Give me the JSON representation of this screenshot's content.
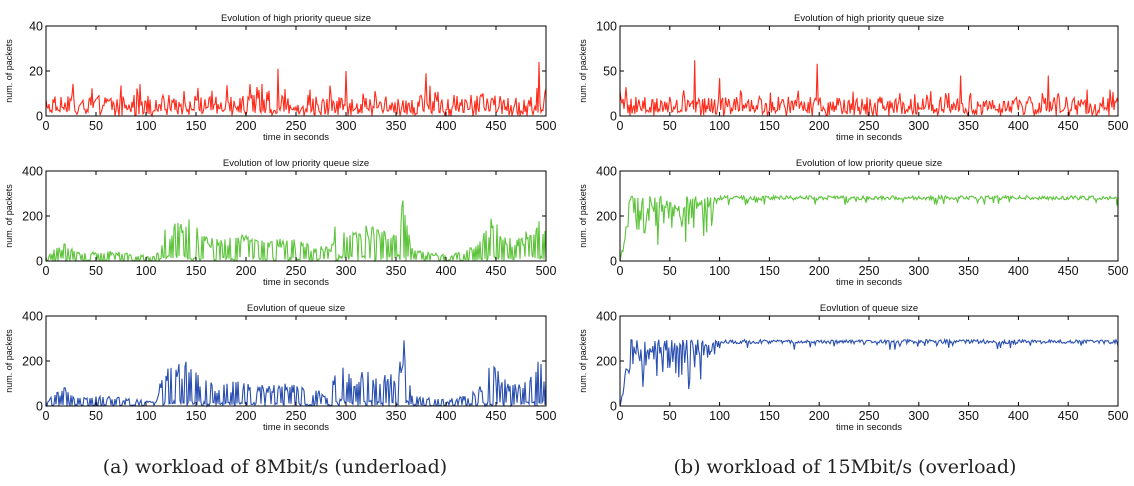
{
  "figure": {
    "caption_a": "(a) workload of 8Mbit/s (underload)",
    "caption_b": "(b) workload of 15Mbit/s (overload)"
  },
  "chart_data": [
    {
      "id": "a-high",
      "type": "line",
      "title": "Evolution of high priority queue size",
      "xlabel": "time in seconds",
      "ylabel": "num. of packets",
      "xlim": [
        0,
        500
      ],
      "ylim": [
        0,
        40
      ],
      "xticks": [
        0,
        50,
        100,
        150,
        200,
        250,
        300,
        350,
        400,
        450,
        500
      ],
      "yticks": [
        0,
        20,
        40
      ],
      "color": "#ff2a1a",
      "series": [
        {
          "mode": "spiky",
          "base": 5,
          "spread": 8,
          "peaks": [
            [
              232,
              21
            ],
            [
              300,
              20
            ],
            [
              380,
              19
            ],
            [
              493,
              24
            ]
          ],
          "x_step": 1
        }
      ]
    },
    {
      "id": "a-low",
      "type": "line",
      "title": "Evolution of low priority queue size",
      "xlabel": "time in seconds",
      "ylabel": "num. of packets",
      "xlim": [
        0,
        500
      ],
      "ylim": [
        0,
        400
      ],
      "xticks": [
        0,
        50,
        100,
        150,
        200,
        250,
        300,
        350,
        400,
        450,
        500
      ],
      "yticks": [
        0,
        200,
        400
      ],
      "color": "#5cc43a",
      "series": [
        {
          "mode": "envelope",
          "x_step": 1,
          "envelope": [
            [
              0,
              20
            ],
            [
              10,
              60
            ],
            [
              20,
              100
            ],
            [
              30,
              40
            ],
            [
              60,
              50
            ],
            [
              90,
              30
            ],
            [
              110,
              20
            ],
            [
              115,
              120
            ],
            [
              125,
              180
            ],
            [
              140,
              200
            ],
            [
              155,
              130
            ],
            [
              170,
              100
            ],
            [
              200,
              120
            ],
            [
              220,
              90
            ],
            [
              240,
              110
            ],
            [
              260,
              80
            ],
            [
              285,
              60
            ],
            [
              292,
              240
            ],
            [
              300,
              180
            ],
            [
              310,
              130
            ],
            [
              318,
              170
            ],
            [
              335,
              140
            ],
            [
              350,
              160
            ],
            [
              358,
              290
            ],
            [
              365,
              60
            ],
            [
              380,
              40
            ],
            [
              400,
              30
            ],
            [
              420,
              50
            ],
            [
              435,
              100
            ],
            [
              445,
              200
            ],
            [
              460,
              120
            ],
            [
              475,
              100
            ],
            [
              490,
              220
            ],
            [
              500,
              150
            ]
          ]
        }
      ]
    },
    {
      "id": "a-total",
      "type": "line",
      "title": "Eovlution of queue size",
      "xlabel": "time in seconds",
      "ylabel": "num. of packets",
      "xlim": [
        0,
        500
      ],
      "ylim": [
        0,
        400
      ],
      "xticks": [
        0,
        50,
        100,
        150,
        200,
        250,
        300,
        350,
        400,
        450,
        500
      ],
      "yticks": [
        0,
        200,
        400
      ],
      "color": "#2a4fb0",
      "series": [
        {
          "mode": "envelope",
          "x_step": 1,
          "envelope": [
            [
              0,
              20
            ],
            [
              10,
              60
            ],
            [
              20,
              100
            ],
            [
              30,
              40
            ],
            [
              60,
              50
            ],
            [
              90,
              30
            ],
            [
              110,
              20
            ],
            [
              115,
              120
            ],
            [
              125,
              190
            ],
            [
              140,
              200
            ],
            [
              155,
              130
            ],
            [
              170,
              100
            ],
            [
              200,
              120
            ],
            [
              220,
              90
            ],
            [
              240,
              110
            ],
            [
              260,
              80
            ],
            [
              285,
              60
            ],
            [
              292,
              250
            ],
            [
              300,
              180
            ],
            [
              310,
              130
            ],
            [
              318,
              170
            ],
            [
              335,
              140
            ],
            [
              350,
              160
            ],
            [
              358,
              300
            ],
            [
              365,
              60
            ],
            [
              380,
              40
            ],
            [
              400,
              30
            ],
            [
              420,
              50
            ],
            [
              435,
              100
            ],
            [
              445,
              210
            ],
            [
              460,
              120
            ],
            [
              475,
              100
            ],
            [
              490,
              230
            ],
            [
              500,
              150
            ]
          ]
        }
      ]
    },
    {
      "id": "b-high",
      "type": "line",
      "title": "Evolution of high priority queue size",
      "xlabel": "time in seconds",
      "ylabel": "num. of packets",
      "xlim": [
        0,
        500
      ],
      "ylim": [
        0,
        100
      ],
      "xticks": [
        0,
        50,
        100,
        150,
        200,
        250,
        300,
        350,
        400,
        450,
        500
      ],
      "yticks": [
        0,
        50,
        100
      ],
      "color": "#ff2a1a",
      "series": [
        {
          "mode": "spiky",
          "base": 12,
          "spread": 18,
          "peaks": [
            [
              75,
              62
            ],
            [
              198,
              58
            ],
            [
              100,
              42
            ],
            [
              342,
              45
            ],
            [
              430,
              45
            ]
          ],
          "x_step": 1
        }
      ]
    },
    {
      "id": "b-low",
      "type": "line",
      "title": "Evolution of low priority queue size",
      "xlabel": "time in seconds",
      "ylabel": "num. of packets",
      "xlim": [
        0,
        500
      ],
      "ylim": [
        0,
        400
      ],
      "xticks": [
        0,
        50,
        100,
        150,
        200,
        250,
        300,
        350,
        400,
        450,
        500
      ],
      "yticks": [
        0,
        200,
        400
      ],
      "color": "#5cc43a",
      "series": [
        {
          "mode": "saturate",
          "x_step": 1,
          "level": 290,
          "ramp_end": 10,
          "noisy_until": 95
        }
      ]
    },
    {
      "id": "b-total",
      "type": "line",
      "title": "Eovlution of queue size",
      "xlabel": "time in seconds",
      "ylabel": "num. of packets",
      "xlim": [
        0,
        500
      ],
      "ylim": [
        0,
        400
      ],
      "xticks": [
        0,
        50,
        100,
        150,
        200,
        250,
        300,
        350,
        400,
        450,
        500
      ],
      "yticks": [
        0,
        200,
        400
      ],
      "color": "#2a4fb0",
      "series": [
        {
          "mode": "saturate",
          "x_step": 1,
          "level": 295,
          "ramp_end": 10,
          "noisy_until": 95
        }
      ]
    }
  ]
}
